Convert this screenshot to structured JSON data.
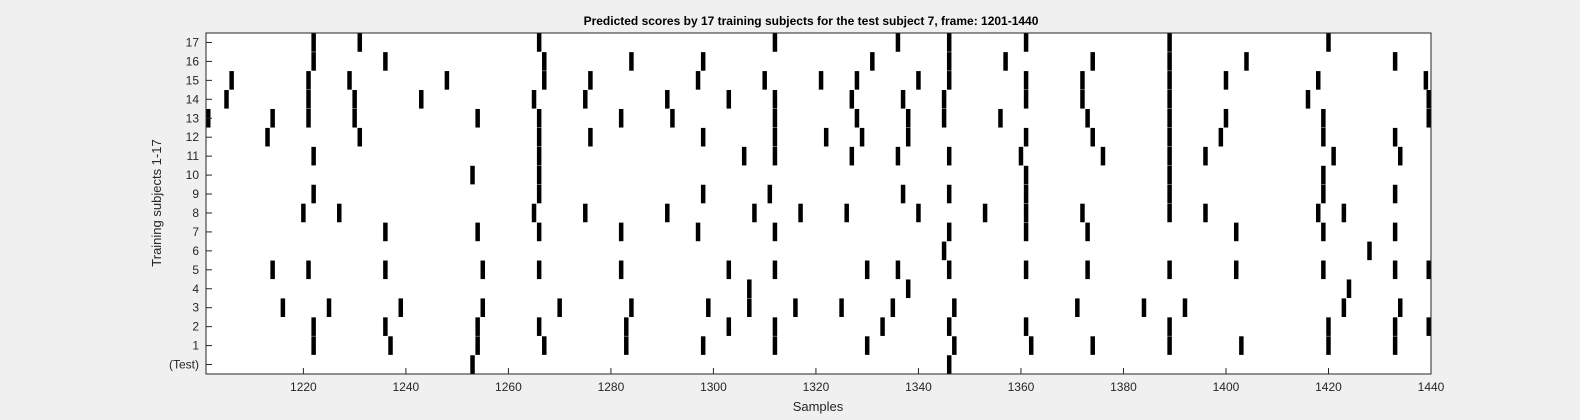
{
  "chart_data": {
    "type": "event-raster",
    "title": "Predicted scores by 17 training subjects for the test subject 7, frame: 1201-1440",
    "xlabel": "Samples",
    "ylabel": "Training subjects 1-17",
    "xlim": [
      1201,
      1440
    ],
    "xticks": [
      1220,
      1240,
      1260,
      1280,
      1300,
      1320,
      1340,
      1360,
      1380,
      1400,
      1420,
      1440
    ],
    "ylim": [
      -0.5,
      17.5
    ],
    "yticks": [
      0,
      1,
      2,
      3,
      4,
      5,
      6,
      7,
      8,
      9,
      10,
      11,
      12,
      13,
      14,
      15,
      16,
      17
    ],
    "ytick_labels": [
      "(Test)",
      "1",
      "2",
      "3",
      "4",
      "5",
      "6",
      "7",
      "8",
      "9",
      "10",
      "11",
      "12",
      "13",
      "14",
      "15",
      "16",
      "17"
    ],
    "grid": false,
    "mark_color": "#000000",
    "rows": [
      {
        "row": 0,
        "events": [
          1253,
          1346
        ]
      },
      {
        "row": 1,
        "events": [
          1222,
          1237,
          1254,
          1267,
          1283,
          1298,
          1312,
          1330,
          1347,
          1362,
          1374,
          1389,
          1403,
          1420,
          1433
        ]
      },
      {
        "row": 2,
        "events": [
          1222,
          1236,
          1254,
          1266,
          1283,
          1303,
          1312,
          1333,
          1346,
          1361,
          1389,
          1420,
          1433,
          1440
        ]
      },
      {
        "row": 3,
        "events": [
          1216,
          1225,
          1239,
          1255,
          1270,
          1284,
          1299,
          1307,
          1316,
          1325,
          1335,
          1347,
          1371,
          1384,
          1392,
          1423,
          1434
        ]
      },
      {
        "row": 4,
        "events": [
          1307,
          1338,
          1424
        ]
      },
      {
        "row": 5,
        "events": [
          1214,
          1221,
          1236,
          1255,
          1266,
          1282,
          1303,
          1312,
          1330,
          1336,
          1346,
          1361,
          1373,
          1389,
          1402,
          1419,
          1433,
          1440
        ]
      },
      {
        "row": 6,
        "events": [
          1345,
          1428
        ]
      },
      {
        "row": 7,
        "events": [
          1236,
          1254,
          1266,
          1282,
          1297,
          1312,
          1346,
          1361,
          1373,
          1402,
          1419,
          1433
        ]
      },
      {
        "row": 8,
        "events": [
          1220,
          1227,
          1265,
          1275,
          1291,
          1308,
          1317,
          1326,
          1340,
          1353,
          1361,
          1372,
          1389,
          1396,
          1418,
          1423
        ]
      },
      {
        "row": 9,
        "events": [
          1222,
          1266,
          1298,
          1311,
          1337,
          1346,
          1361,
          1389,
          1419,
          1433
        ]
      },
      {
        "row": 10,
        "events": [
          1253,
          1266,
          1361,
          1389,
          1419
        ]
      },
      {
        "row": 11,
        "events": [
          1222,
          1266,
          1306,
          1312,
          1327,
          1336,
          1346,
          1360,
          1376,
          1389,
          1396,
          1421,
          1434
        ]
      },
      {
        "row": 12,
        "events": [
          1213,
          1231,
          1266,
          1276,
          1298,
          1312,
          1322,
          1329,
          1338,
          1361,
          1374,
          1389,
          1399,
          1419,
          1433
        ]
      },
      {
        "row": 13,
        "events": [
          1201,
          1214,
          1221,
          1230,
          1254,
          1266,
          1282,
          1292,
          1312,
          1328,
          1338,
          1345,
          1356,
          1373,
          1389,
          1400,
          1419,
          1440
        ]
      },
      {
        "row": 14,
        "events": [
          1205,
          1221,
          1230,
          1243,
          1265,
          1275,
          1291,
          1303,
          1312,
          1327,
          1337,
          1345,
          1361,
          1372,
          1389,
          1416,
          1440
        ]
      },
      {
        "row": 15,
        "events": [
          1206,
          1221,
          1229,
          1248,
          1267,
          1276,
          1297,
          1310,
          1321,
          1328,
          1340,
          1346,
          1361,
          1372,
          1389,
          1400,
          1418,
          1439
        ]
      },
      {
        "row": 16,
        "events": [
          1222,
          1236,
          1267,
          1284,
          1298,
          1331,
          1346,
          1357,
          1374,
          1389,
          1404,
          1433
        ]
      },
      {
        "row": 17,
        "events": [
          1222,
          1231,
          1266,
          1312,
          1336,
          1346,
          1361,
          1389,
          1420
        ]
      }
    ]
  }
}
